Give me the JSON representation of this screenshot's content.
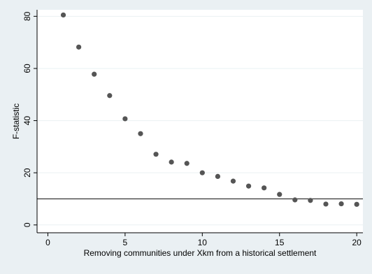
{
  "chart_data": {
    "type": "scatter",
    "xlabel": "Removing communities under Xkm from a historical settlement",
    "ylabel": "F-statistic",
    "xlim": [
      0,
      20
    ],
    "ylim": [
      0,
      80
    ],
    "xticks": [
      0,
      5,
      10,
      15,
      20
    ],
    "yticks": [
      0,
      20,
      40,
      60,
      80
    ],
    "grid": "horizontal",
    "reference_line": {
      "y": 10
    },
    "points": [
      {
        "x": 1,
        "y": 80.5
      },
      {
        "x": 2,
        "y": 68.2
      },
      {
        "x": 3,
        "y": 57.8
      },
      {
        "x": 4,
        "y": 49.6
      },
      {
        "x": 5,
        "y": 40.7
      },
      {
        "x": 6,
        "y": 35.0
      },
      {
        "x": 7,
        "y": 27.1
      },
      {
        "x": 8,
        "y": 24.1
      },
      {
        "x": 9,
        "y": 23.6
      },
      {
        "x": 10,
        "y": 20.0
      },
      {
        "x": 11,
        "y": 18.6
      },
      {
        "x": 12,
        "y": 16.8
      },
      {
        "x": 13,
        "y": 14.9
      },
      {
        "x": 14,
        "y": 14.2
      },
      {
        "x": 15,
        "y": 11.7
      },
      {
        "x": 16,
        "y": 9.6
      },
      {
        "x": 17,
        "y": 9.4
      },
      {
        "x": 18,
        "y": 8.0
      },
      {
        "x": 19,
        "y": 8.1
      },
      {
        "x": 20,
        "y": 7.9
      }
    ],
    "colors": {
      "background": "#eaf0f3",
      "plot_area": "#ffffff",
      "marker": "#555555",
      "grid": "#eaf0f3",
      "reference_line": "#333333"
    }
  }
}
